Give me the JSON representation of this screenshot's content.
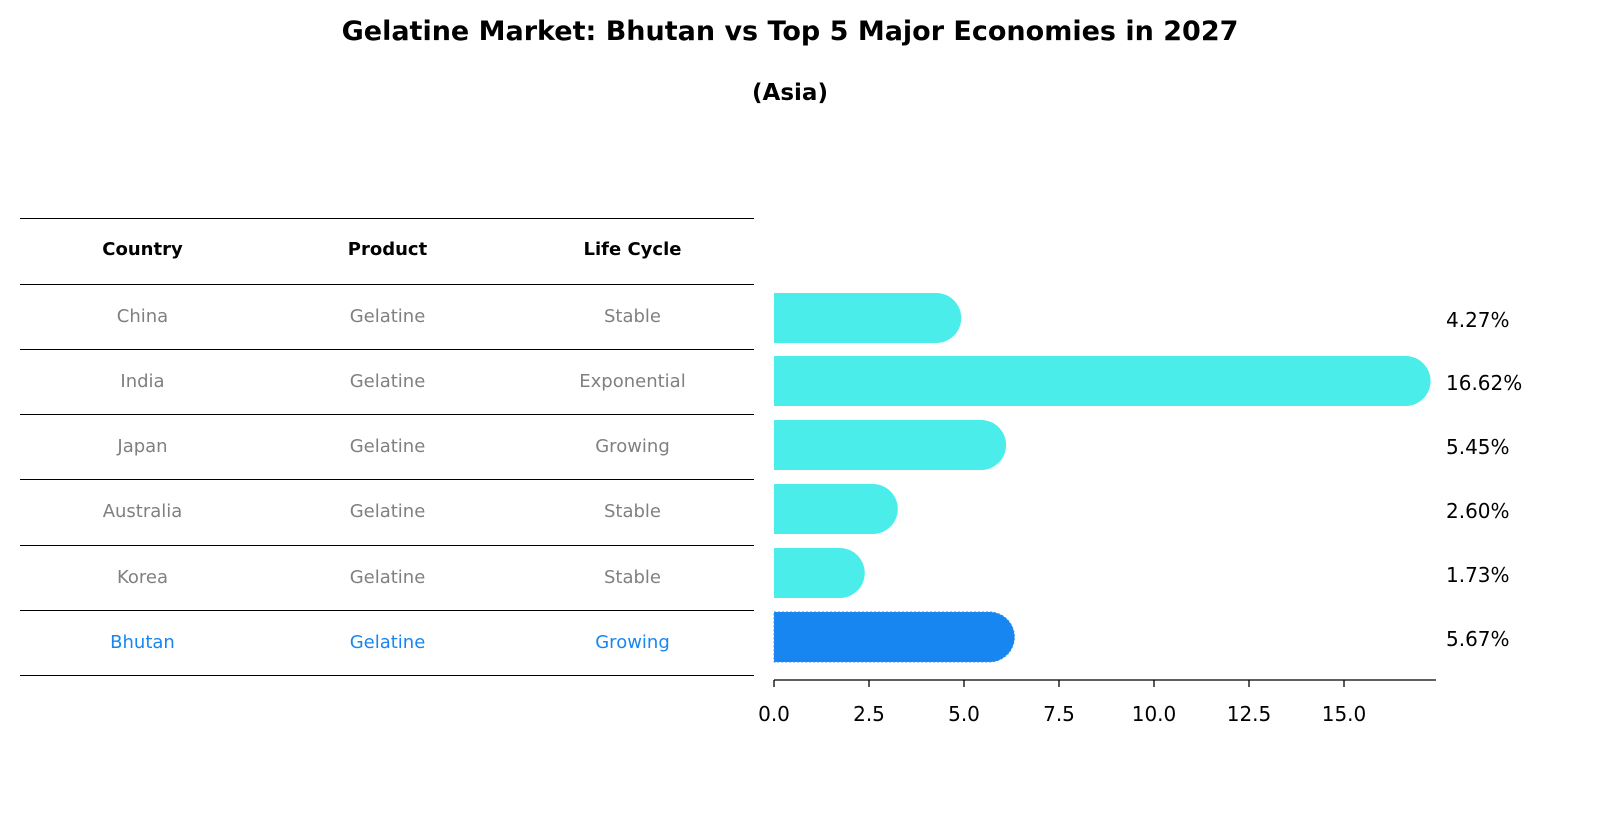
{
  "chart_data": {
    "type": "bar",
    "orientation": "horizontal",
    "title": "Gelatine Market: Bhutan vs Top 5 Major Economies in 2027",
    "subtitle": "(Asia)",
    "table": {
      "headers": [
        "Country",
        "Product",
        "Life Cycle"
      ],
      "rows": [
        [
          "China",
          "Gelatine",
          "Stable"
        ],
        [
          "India",
          "Gelatine",
          "Exponential"
        ],
        [
          "Japan",
          "Gelatine",
          "Growing"
        ],
        [
          "Australia",
          "Gelatine",
          "Stable"
        ],
        [
          "Korea",
          "Gelatine",
          "Stable"
        ],
        [
          "Bhutan",
          "Gelatine",
          "Growing"
        ]
      ]
    },
    "categories": [
      "China",
      "India",
      "Japan",
      "Australia",
      "Korea",
      "Bhutan"
    ],
    "values": [
      4.27,
      16.62,
      5.45,
      2.6,
      1.73,
      5.67
    ],
    "value_labels": [
      "4.27%",
      "16.62%",
      "5.45%",
      "2.60%",
      "1.73%",
      "5.67%"
    ],
    "xticks": [
      "0.0",
      "2.5",
      "5.0",
      "7.5",
      "10.0",
      "12.5",
      "15.0"
    ],
    "xlim": [
      0,
      17.4
    ],
    "xlabel": "",
    "ylabel": "",
    "colors": {
      "default": "#4BEDEA",
      "highlight": "#1786F0",
      "text_default": "#808080",
      "text_highlight": "#1786F0"
    },
    "highlight": "Bhutan"
  }
}
